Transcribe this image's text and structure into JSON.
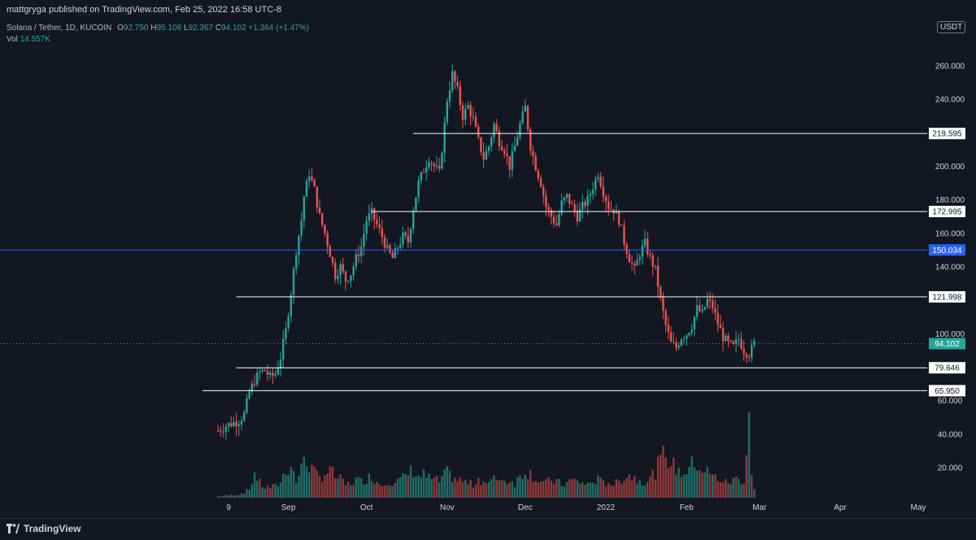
{
  "header": {
    "publish_text": "mattgryga published on TradingView.com, Feb 25, 2022 16:58 UTC-8"
  },
  "legend": {
    "symbol": "Solana / Tether, 1D, KUCOIN",
    "o_label": "O",
    "o_value": "92.750",
    "h_label": "H",
    "h_value": "95.108",
    "l_label": "L",
    "l_value": "92.367",
    "c_label": "C",
    "c_value": "94.102",
    "change": "+1.364 (+1.47%)",
    "vol_label": "Vol",
    "vol_value": "14.557K"
  },
  "currency_badge": "USDT",
  "footer": {
    "brand": "TradingView"
  },
  "colors": {
    "background": "#131722",
    "up": "#26a69a",
    "down": "#ef5350",
    "up_vol": "#1f6f68",
    "down_vol": "#8e3a3a",
    "blue_line": "#2962ff",
    "white_line": "#ffffff",
    "grid_text": "#d1d4dc"
  },
  "chart_data": {
    "type": "candlestick",
    "title": "",
    "xlabel": "",
    "ylabel": "",
    "ylim": [
      0,
      280
    ],
    "y_ticks": [
      "20.000",
      "40.000",
      "60.000",
      "100.000",
      "140.000",
      "160.000",
      "180.000",
      "200.000",
      "240.000",
      "260.000"
    ],
    "y_tick_values": [
      20,
      40,
      60,
      100,
      140,
      160,
      180,
      200,
      240,
      260
    ],
    "x_ticks": [
      "9",
      "Sep",
      "Oct",
      "Nov",
      "Dec",
      "2022",
      "Feb",
      "Mar",
      "Apr",
      "May"
    ],
    "x_tick_days": [
      0,
      23,
      53,
      84,
      114,
      145,
      176,
      204,
      235,
      265
    ],
    "horizontal_lines": [
      {
        "value": 219.595,
        "label": "219.595",
        "color": "#ffffff",
        "start_day": 71
      },
      {
        "value": 172.995,
        "label": "172.995",
        "color": "#ffffff",
        "start_day": 55
      },
      {
        "value": 150.034,
        "label": "150.034",
        "color": "#2962ff",
        "start_day": -90
      },
      {
        "value": 121.998,
        "label": "121.998",
        "color": "#ffffff",
        "start_day": 3
      },
      {
        "value": 79.646,
        "label": "79.646",
        "color": "#ffffff",
        "start_day": 3
      },
      {
        "value": 65.95,
        "label": "65.950",
        "color": "#ffffff",
        "start_day": -10
      }
    ],
    "last_price": {
      "value": 94.102,
      "label": "94.102"
    },
    "close_path": [
      [
        -4,
        42
      ],
      [
        -1,
        45
      ],
      [
        2,
        47
      ],
      [
        4,
        48
      ],
      [
        6,
        52
      ],
      [
        8,
        65
      ],
      [
        10,
        72
      ],
      [
        12,
        77
      ],
      [
        14,
        78
      ],
      [
        16,
        74
      ],
      [
        18,
        76
      ],
      [
        20,
        86
      ],
      [
        22,
        102
      ],
      [
        24,
        125
      ],
      [
        26,
        150
      ],
      [
        28,
        168
      ],
      [
        29,
        182
      ],
      [
        31,
        196
      ],
      [
        33,
        186
      ],
      [
        35,
        170
      ],
      [
        37,
        160
      ],
      [
        39,
        148
      ],
      [
        41,
        135
      ],
      [
        43,
        140
      ],
      [
        45,
        132
      ],
      [
        47,
        136
      ],
      [
        49,
        145
      ],
      [
        51,
        152
      ],
      [
        53,
        168
      ],
      [
        55,
        172
      ],
      [
        57,
        165
      ],
      [
        59,
        158
      ],
      [
        61,
        150
      ],
      [
        63,
        145
      ],
      [
        65,
        152
      ],
      [
        67,
        158
      ],
      [
        69,
        155
      ],
      [
        71,
        175
      ],
      [
        73,
        190
      ],
      [
        75,
        198
      ],
      [
        77,
        205
      ],
      [
        79,
        200
      ],
      [
        81,
        196
      ],
      [
        83,
        225
      ],
      [
        84,
        240
      ],
      [
        86,
        255
      ],
      [
        88,
        245
      ],
      [
        90,
        230
      ],
      [
        92,
        236
      ],
      [
        94,
        228
      ],
      [
        96,
        215
      ],
      [
        98,
        205
      ],
      [
        100,
        212
      ],
      [
        102,
        225
      ],
      [
        104,
        215
      ],
      [
        106,
        210
      ],
      [
        108,
        200
      ],
      [
        110,
        212
      ],
      [
        112,
        225
      ],
      [
        114,
        235
      ],
      [
        116,
        212
      ],
      [
        118,
        200
      ],
      [
        120,
        190
      ],
      [
        122,
        176
      ],
      [
        124,
        170
      ],
      [
        126,
        165
      ],
      [
        128,
        178
      ],
      [
        130,
        182
      ],
      [
        132,
        176
      ],
      [
        134,
        170
      ],
      [
        136,
        176
      ],
      [
        138,
        180
      ],
      [
        140,
        188
      ],
      [
        142,
        196
      ],
      [
        144,
        185
      ],
      [
        146,
        176
      ],
      [
        148,
        174
      ],
      [
        150,
        168
      ],
      [
        152,
        155
      ],
      [
        154,
        145
      ],
      [
        156,
        138
      ],
      [
        158,
        148
      ],
      [
        160,
        154
      ],
      [
        162,
        145
      ],
      [
        164,
        138
      ],
      [
        166,
        120
      ],
      [
        168,
        105
      ],
      [
        170,
        94
      ],
      [
        172,
        92
      ],
      [
        174,
        98
      ],
      [
        176,
        100
      ],
      [
        178,
        105
      ],
      [
        180,
        115
      ],
      [
        182,
        112
      ],
      [
        184,
        120
      ],
      [
        186,
        116
      ],
      [
        188,
        106
      ],
      [
        190,
        98
      ],
      [
        192,
        94
      ],
      [
        194,
        92
      ],
      [
        196,
        97
      ],
      [
        198,
        90
      ],
      [
        200,
        88
      ],
      [
        202,
        94
      ]
    ],
    "volume_ylim": [
      0,
      120
    ],
    "volume_path": [
      [
        -4,
        2
      ],
      [
        0,
        3
      ],
      [
        4,
        4
      ],
      [
        8,
        10
      ],
      [
        10,
        30
      ],
      [
        12,
        18
      ],
      [
        14,
        12
      ],
      [
        18,
        14
      ],
      [
        20,
        20
      ],
      [
        22,
        34
      ],
      [
        24,
        40
      ],
      [
        26,
        20
      ],
      [
        28,
        35
      ],
      [
        29,
        52
      ],
      [
        31,
        40
      ],
      [
        33,
        30
      ],
      [
        35,
        25
      ],
      [
        37,
        30
      ],
      [
        39,
        34
      ],
      [
        41,
        26
      ],
      [
        43,
        22
      ],
      [
        45,
        16
      ],
      [
        47,
        18
      ],
      [
        49,
        22
      ],
      [
        51,
        20
      ],
      [
        53,
        24
      ],
      [
        55,
        26
      ],
      [
        57,
        20
      ],
      [
        59,
        16
      ],
      [
        61,
        22
      ],
      [
        63,
        18
      ],
      [
        65,
        20
      ],
      [
        67,
        24
      ],
      [
        69,
        30
      ],
      [
        71,
        34
      ],
      [
        73,
        26
      ],
      [
        75,
        28
      ],
      [
        77,
        24
      ],
      [
        79,
        22
      ],
      [
        81,
        20
      ],
      [
        83,
        28
      ],
      [
        84,
        30
      ],
      [
        86,
        26
      ],
      [
        88,
        22
      ],
      [
        90,
        20
      ],
      [
        92,
        18
      ],
      [
        94,
        16
      ],
      [
        96,
        24
      ],
      [
        98,
        20
      ],
      [
        100,
        18
      ],
      [
        102,
        22
      ],
      [
        104,
        26
      ],
      [
        106,
        20
      ],
      [
        108,
        22
      ],
      [
        110,
        18
      ],
      [
        112,
        26
      ],
      [
        114,
        34
      ],
      [
        116,
        30
      ],
      [
        118,
        24
      ],
      [
        120,
        20
      ],
      [
        122,
        18
      ],
      [
        124,
        22
      ],
      [
        126,
        20
      ],
      [
        128,
        16
      ],
      [
        130,
        18
      ],
      [
        132,
        22
      ],
      [
        134,
        20
      ],
      [
        136,
        18
      ],
      [
        138,
        16
      ],
      [
        140,
        20
      ],
      [
        142,
        22
      ],
      [
        144,
        18
      ],
      [
        146,
        20
      ],
      [
        148,
        16
      ],
      [
        150,
        20
      ],
      [
        152,
        26
      ],
      [
        154,
        28
      ],
      [
        156,
        24
      ],
      [
        158,
        22
      ],
      [
        160,
        20
      ],
      [
        162,
        24
      ],
      [
        164,
        32
      ],
      [
        166,
        46
      ],
      [
        168,
        56
      ],
      [
        170,
        42
      ],
      [
        172,
        36
      ],
      [
        174,
        30
      ],
      [
        176,
        34
      ],
      [
        178,
        40
      ],
      [
        180,
        42
      ],
      [
        182,
        34
      ],
      [
        184,
        32
      ],
      [
        186,
        26
      ],
      [
        188,
        24
      ],
      [
        190,
        20
      ],
      [
        192,
        18
      ],
      [
        194,
        22
      ],
      [
        196,
        24
      ],
      [
        198,
        20
      ],
      [
        199,
        54
      ],
      [
        200,
        118
      ],
      [
        201,
        28
      ],
      [
        202,
        10
      ]
    ]
  }
}
